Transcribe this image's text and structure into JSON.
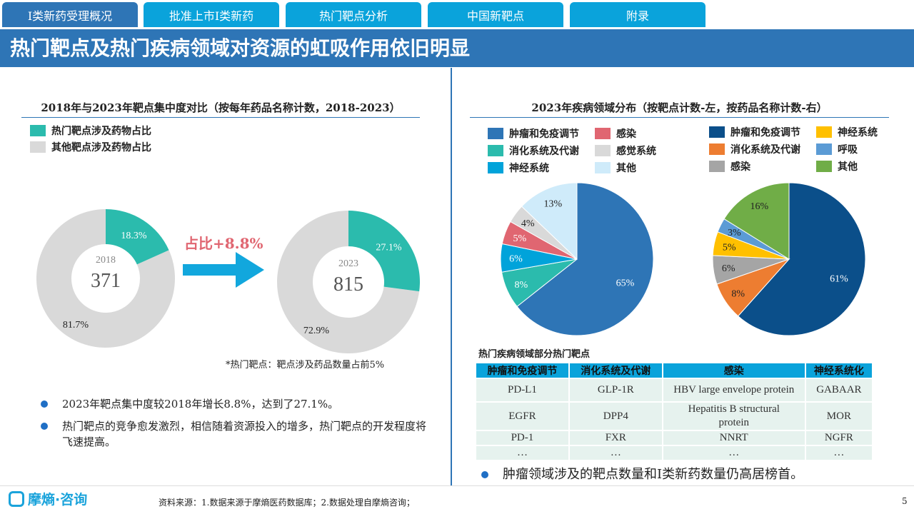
{
  "tabs": [
    "I类新药受理概况",
    "批准上市I类新药",
    "热门靶点分析",
    "中国新靶点",
    "附录"
  ],
  "title": "热门靶点及热门疾病领域对资源的虹吸作用依旧明显",
  "left": {
    "subtitle": "2018年与2023年靶点集中度对比（按每年药品名称计数，2018-2023）",
    "legend": [
      {
        "label": "热门靶点涉及药物占比",
        "color": "#2BBBAD"
      },
      {
        "label": "其他靶点涉及药物占比",
        "color": "#D9D9D9"
      }
    ],
    "donuts": [
      {
        "year": "2018",
        "count": "371",
        "hot_pct": 18.3,
        "hot_label": "18.3%",
        "other_label": "81.7%"
      },
      {
        "year": "2023",
        "count": "815",
        "hot_pct": 27.1,
        "hot_label": "27.1%",
        "other_label": "72.9%"
      }
    ],
    "arrow_label": "占比+8.8%",
    "note": "*热门靶点：靶点涉及药品数量占前5%",
    "bullets": [
      "2023年靶点集中度较2018年增长8.8%，达到了27.1%。",
      "热门靶点的竞争愈发激烈，相信随着资源投入的增多，热门靶点的开发程度将飞速提高。"
    ]
  },
  "right": {
    "subtitle": "2023年疾病领域分布（按靶点计数-左，按药品名称计数-右）",
    "chart_data": [
      {
        "type": "pie",
        "title": "按靶点计数",
        "categories": [
          "肿瘤和免疫调节",
          "消化系统及代谢",
          "神经系统",
          "感染",
          "感觉系统",
          "其他"
        ],
        "values": [
          65,
          8,
          6,
          5,
          4,
          13
        ],
        "labels": [
          "65%",
          "8%",
          "6%",
          "5%",
          "4%",
          "13%"
        ],
        "colors": [
          "#2E75B6",
          "#2BBBAD",
          "#00A3DA",
          "#E06671",
          "#D9D9D9",
          "#CFEBFA"
        ],
        "legend_order": [
          0,
          3,
          1,
          4,
          2,
          5
        ]
      },
      {
        "type": "pie",
        "title": "按药品名称计数",
        "categories": [
          "肿瘤和免疫调节",
          "消化系统及代谢",
          "感染",
          "神经系统",
          "呼吸",
          "其他"
        ],
        "values": [
          61,
          8,
          6,
          5,
          3,
          16
        ],
        "labels": [
          "61%",
          "8%",
          "6%",
          "5%",
          "3%",
          "16%"
        ],
        "colors": [
          "#0B4F8A",
          "#ED7D31",
          "#A5A5A5",
          "#FFC000",
          "#5B9BD5",
          "#70AD47"
        ],
        "legend_order": [
          0,
          3,
          1,
          4,
          2,
          5
        ]
      }
    ],
    "table_title": "热门疾病领域部分热门靶点",
    "table_headers": [
      "肿瘤和免疫调节",
      "消化系统及代谢",
      "感染",
      "神经系统化"
    ],
    "table_rows": [
      [
        "PD-L1",
        "GLP-1R",
        "HBV large envelope protein",
        "GABAAR"
      ],
      [
        "EGFR",
        "DPP4",
        "Hepatitis B structural protein",
        "MOR"
      ],
      [
        "PD-1",
        "FXR",
        "NNRT",
        "NGFR"
      ],
      [
        "…",
        "…",
        "…",
        "…"
      ]
    ],
    "bullet": "肿瘤领域涉及的靶点数量和I类新药数量仍高居榜首。"
  },
  "footer": {
    "logo": "摩熵·咨询",
    "source": "资料来源：1.数据来源于摩熵医药数据库；2.数据处理自摩熵咨询；",
    "page": "5"
  }
}
